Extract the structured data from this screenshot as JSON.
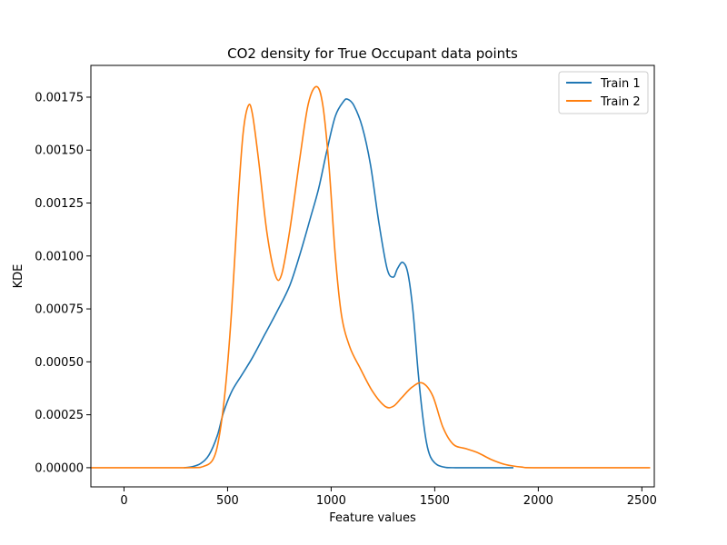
{
  "chart_data": {
    "type": "line",
    "title": "CO2 density for True Occupant data points",
    "xlabel": "Feature values",
    "ylabel": "KDE",
    "xlim": [
      -160,
      2560
    ],
    "ylim": [
      -9.05e-05,
      0.0019
    ],
    "x_ticks": [
      0,
      500,
      1000,
      1500,
      2000,
      2500
    ],
    "y_ticks": [
      0,
      0.00025,
      0.0005,
      0.00075,
      0.001,
      0.00125,
      0.0015,
      0.00175
    ],
    "x_tick_labels": [
      "0",
      "500",
      "1000",
      "1500",
      "2000",
      "2500"
    ],
    "y_tick_labels": [
      "0.00000",
      "0.00025",
      "0.00050",
      "0.00075",
      "0.00100",
      "0.00125",
      "0.00150",
      "0.00175"
    ],
    "grid": false,
    "legend_position": "top-right",
    "series": [
      {
        "name": "Train 1",
        "color": "#1f77b4",
        "points": [
          [
            290,
            0
          ],
          [
            330,
            5e-06
          ],
          [
            370,
            2e-05
          ],
          [
            410,
            6e-05
          ],
          [
            450,
            0.00015
          ],
          [
            480,
            0.00026
          ],
          [
            520,
            0.00036
          ],
          [
            570,
            0.00044
          ],
          [
            620,
            0.00052
          ],
          [
            680,
            0.00063
          ],
          [
            740,
            0.00074
          ],
          [
            800,
            0.00086
          ],
          [
            850,
            0.00101
          ],
          [
            900,
            0.00118
          ],
          [
            940,
            0.00132
          ],
          [
            980,
            0.0015
          ],
          [
            1020,
            0.00166
          ],
          [
            1060,
            0.00173
          ],
          [
            1080,
            0.00174
          ],
          [
            1110,
            0.00171
          ],
          [
            1150,
            0.00161
          ],
          [
            1190,
            0.00143
          ],
          [
            1230,
            0.00116
          ],
          [
            1270,
            0.00094
          ],
          [
            1300,
            0.0009
          ],
          [
            1320,
            0.00094
          ],
          [
            1345,
            0.00097
          ],
          [
            1370,
            0.00092
          ],
          [
            1395,
            0.00074
          ],
          [
            1420,
            0.00045
          ],
          [
            1440,
            0.00026
          ],
          [
            1460,
            0.00012
          ],
          [
            1480,
            5e-05
          ],
          [
            1510,
            1.5e-05
          ],
          [
            1550,
            2e-06
          ],
          [
            1600,
            0
          ],
          [
            1880,
            0
          ]
        ]
      },
      {
        "name": "Train 2",
        "color": "#ff7f0e",
        "points": [
          [
            -160,
            0
          ],
          [
            300,
            0
          ],
          [
            380,
            5e-06
          ],
          [
            430,
            4e-05
          ],
          [
            460,
            0.00015
          ],
          [
            490,
            0.00038
          ],
          [
            520,
            0.00075
          ],
          [
            550,
            0.00125
          ],
          [
            575,
            0.00158
          ],
          [
            600,
            0.00171
          ],
          [
            620,
            0.00167
          ],
          [
            650,
            0.00145
          ],
          [
            690,
            0.00111
          ],
          [
            730,
            0.00091
          ],
          [
            760,
            0.00091
          ],
          [
            800,
            0.00112
          ],
          [
            850,
            0.00147
          ],
          [
            890,
            0.00172
          ],
          [
            930,
            0.0018
          ],
          [
            960,
            0.00171
          ],
          [
            990,
            0.00142
          ],
          [
            1020,
            0.001
          ],
          [
            1050,
            0.00072
          ],
          [
            1090,
            0.00057
          ],
          [
            1140,
            0.00047
          ],
          [
            1200,
            0.00036
          ],
          [
            1260,
            0.00029
          ],
          [
            1300,
            0.00029
          ],
          [
            1340,
            0.00033
          ],
          [
            1390,
            0.00038
          ],
          [
            1440,
            0.0004
          ],
          [
            1490,
            0.00034
          ],
          [
            1540,
            0.00019
          ],
          [
            1590,
            0.00011
          ],
          [
            1650,
            9e-05
          ],
          [
            1710,
            7e-05
          ],
          [
            1770,
            4e-05
          ],
          [
            1840,
            1.5e-05
          ],
          [
            1920,
            3e-06
          ],
          [
            2000,
            0
          ],
          [
            2540,
            0
          ]
        ]
      }
    ]
  }
}
